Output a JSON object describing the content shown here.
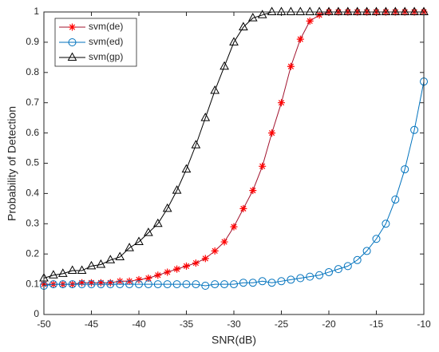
{
  "chart_data": {
    "type": "line",
    "xlabel": "SNR(dB)",
    "ylabel": "Probability of Detection",
    "x": [
      -50,
      -49,
      -48,
      -47,
      -46,
      -45,
      -44,
      -43,
      -42,
      -41,
      -40,
      -39,
      -38,
      -37,
      -36,
      -35,
      -34,
      -33,
      -32,
      -31,
      -30,
      -29,
      -28,
      -27,
      -26,
      -25,
      -24,
      -23,
      -22,
      -21,
      -20,
      -19,
      -18,
      -17,
      -16,
      -15,
      -14,
      -13,
      -12,
      -11,
      -10
    ],
    "xlim": [
      -50,
      -10
    ],
    "xticks": [
      -50,
      -45,
      -40,
      -35,
      -30,
      -25,
      -20,
      -15,
      -10
    ],
    "ylim": [
      0,
      1
    ],
    "yticks": [
      0,
      0.1,
      0.2,
      0.3,
      0.4,
      0.5,
      0.6,
      0.7,
      0.8,
      0.9,
      1
    ],
    "legend": "upper left",
    "series": [
      {
        "name": "svm(de)",
        "color": "#a2142f",
        "marker": "asterisk",
        "marker_color": "#ff0000",
        "values": [
          0.1,
          0.1,
          0.1,
          0.1,
          0.105,
          0.105,
          0.105,
          0.105,
          0.11,
          0.11,
          0.115,
          0.12,
          0.13,
          0.14,
          0.15,
          0.16,
          0.17,
          0.185,
          0.21,
          0.24,
          0.29,
          0.35,
          0.41,
          0.49,
          0.6,
          0.7,
          0.82,
          0.91,
          0.97,
          0.99,
          1,
          1,
          1,
          1,
          1,
          1,
          1,
          1,
          1,
          1,
          1
        ]
      },
      {
        "name": "svm(ed)",
        "color": "#0072bd",
        "marker": "circle",
        "marker_color": "#0072bd",
        "values": [
          0.095,
          0.1,
          0.1,
          0.1,
          0.1,
          0.1,
          0.1,
          0.1,
          0.1,
          0.1,
          0.1,
          0.1,
          0.1,
          0.1,
          0.1,
          0.1,
          0.1,
          0.095,
          0.1,
          0.1,
          0.1,
          0.105,
          0.105,
          0.11,
          0.105,
          0.11,
          0.115,
          0.12,
          0.125,
          0.13,
          0.14,
          0.15,
          0.16,
          0.18,
          0.21,
          0.25,
          0.3,
          0.38,
          0.48,
          0.61,
          0.77
        ]
      },
      {
        "name": "svm(gp)",
        "color": "#000000",
        "marker": "triangle",
        "marker_color": "#000000",
        "values": [
          0.12,
          0.13,
          0.135,
          0.145,
          0.145,
          0.16,
          0.165,
          0.18,
          0.19,
          0.22,
          0.24,
          0.27,
          0.3,
          0.35,
          0.41,
          0.48,
          0.56,
          0.65,
          0.74,
          0.82,
          0.9,
          0.95,
          0.98,
          0.99,
          1,
          1,
          1,
          1,
          1,
          1,
          1,
          1,
          1,
          1,
          1,
          1,
          1,
          1,
          1,
          1,
          1
        ]
      }
    ]
  }
}
